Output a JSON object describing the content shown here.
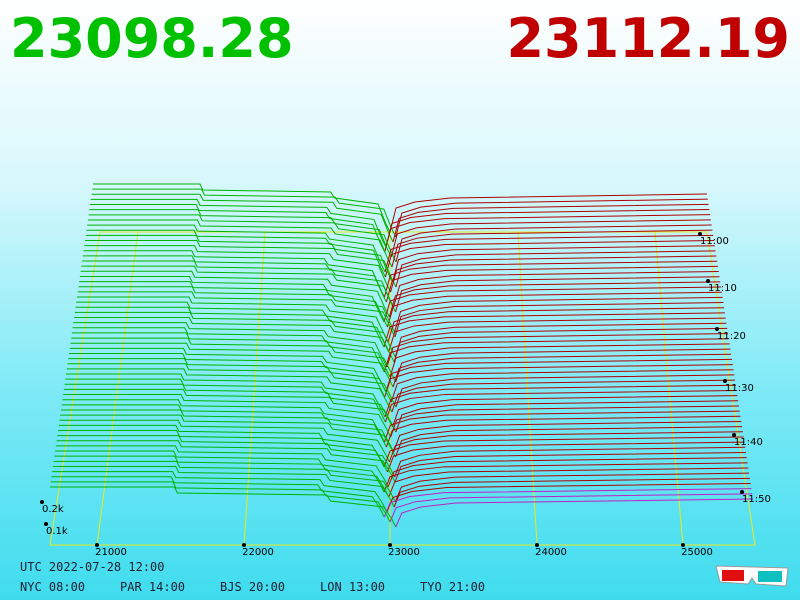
{
  "prices": {
    "bid": "23098.28",
    "ask": "23112.19"
  },
  "axis": {
    "price_ticks": [
      "21000",
      "22000",
      "23000",
      "24000",
      "25000"
    ],
    "time_labels": [
      "11:00",
      "11:10",
      "11:20",
      "11:30",
      "11:40",
      "11:50"
    ],
    "depth_labels": [
      "0.2k",
      "0.1k"
    ]
  },
  "footer": {
    "utc": "UTC 2022-07-28 12:00",
    "zones": [
      "NYC 08:00",
      "PAR 14:00",
      "BJS 20:00",
      "LON 13:00",
      "TYO 21:00"
    ]
  }
}
